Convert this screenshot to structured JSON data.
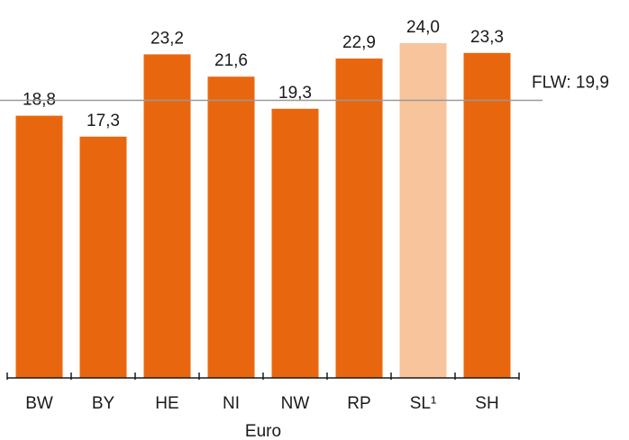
{
  "chart_data": {
    "type": "bar",
    "categories": [
      "BW",
      "BY",
      "HE",
      "NI",
      "NW",
      "RP",
      "SL¹",
      "SH"
    ],
    "values": [
      18.8,
      17.3,
      23.2,
      21.6,
      19.3,
      22.9,
      24.0,
      23.3
    ],
    "value_labels": [
      "18,8",
      "17,3",
      "23,2",
      "21,6",
      "19,3",
      "22,9",
      "24,0",
      "23,3"
    ],
    "colors": [
      "#e8670e",
      "#e8670e",
      "#e8670e",
      "#e8670e",
      "#e8670e",
      "#e8670e",
      "#f7c49c",
      "#e8670e"
    ],
    "x_label": "Euro",
    "reference_line": {
      "value": 19.9,
      "label": "FLW: 19,9",
      "color": "#9a9a9a"
    },
    "ylim": [
      0,
      24
    ]
  }
}
